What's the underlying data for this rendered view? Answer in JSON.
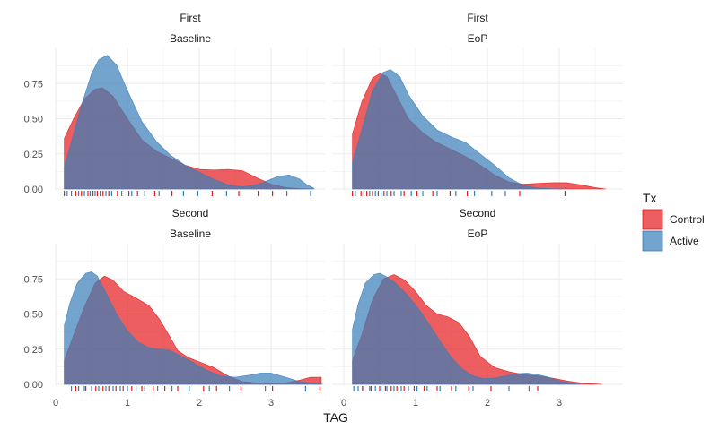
{
  "chart_data": {
    "type": "area",
    "subtype": "density-facet-grid",
    "xlabel": "TAG",
    "ylabel": "",
    "xlim": [
      0,
      3.75
    ],
    "ylim": [
      0,
      0.98
    ],
    "x_ticks": [
      0,
      1,
      2,
      3
    ],
    "y_ticks": [
      0,
      0.25,
      0.5,
      0.75
    ],
    "y_tick_labels": [
      "0.00",
      "0.25",
      "0.50",
      "0.75"
    ],
    "grid": true,
    "legend": {
      "title": "Tx",
      "position": "right",
      "entries": [
        {
          "label": "Control",
          "color": "#E41A1C"
        },
        {
          "label": "Active",
          "color": "#377EB8"
        }
      ]
    },
    "panels": [
      {
        "row_label": "First",
        "col_label": "Baseline",
        "series": [
          {
            "name": "Control",
            "color": "#E41A1C",
            "x": [
              0.12,
              0.25,
              0.4,
              0.55,
              0.65,
              0.8,
              1.0,
              1.2,
              1.4,
              1.6,
              1.8,
              2.0,
              2.2,
              2.4,
              2.6,
              2.8,
              3.0,
              3.2,
              3.4,
              3.58
            ],
            "y": [
              0.36,
              0.5,
              0.64,
              0.71,
              0.72,
              0.66,
              0.5,
              0.35,
              0.27,
              0.22,
              0.17,
              0.14,
              0.135,
              0.14,
              0.13,
              0.08,
              0.035,
              0.01,
              0.003,
              0.0
            ]
          },
          {
            "name": "Active",
            "color": "#377EB8",
            "x": [
              0.12,
              0.2,
              0.35,
              0.5,
              0.6,
              0.72,
              0.85,
              1.0,
              1.2,
              1.4,
              1.6,
              1.8,
              2.0,
              2.2,
              2.4,
              2.6,
              2.8,
              3.0,
              3.1,
              3.25,
              3.4,
              3.5,
              3.6
            ],
            "y": [
              0.16,
              0.3,
              0.58,
              0.82,
              0.92,
              0.95,
              0.88,
              0.7,
              0.48,
              0.34,
              0.24,
              0.17,
              0.12,
              0.07,
              0.03,
              0.015,
              0.03,
              0.07,
              0.09,
              0.1,
              0.07,
              0.03,
              0.005
            ]
          }
        ],
        "rug": {
          "control": [
            0.12,
            0.28,
            0.36,
            0.45,
            0.52,
            0.58,
            0.66,
            0.74,
            0.86,
            1.02,
            1.14,
            1.38,
            1.62,
            2.18,
            2.55,
            2.82,
            3.02
          ],
          "active": [
            0.16,
            0.22,
            0.32,
            0.4,
            0.48,
            0.55,
            0.62,
            0.7,
            0.78,
            0.92,
            1.06,
            1.24,
            1.44,
            1.78,
            1.98,
            2.38,
            3.22,
            3.55
          ]
        }
      },
      {
        "row_label": "First",
        "col_label": "EoP",
        "series": [
          {
            "name": "Control",
            "color": "#E41A1C",
            "x": [
              0.12,
              0.25,
              0.4,
              0.5,
              0.6,
              0.75,
              0.9,
              1.1,
              1.3,
              1.5,
              1.7,
              1.9,
              2.1,
              2.3,
              2.5,
              2.7,
              2.9,
              3.1,
              3.3,
              3.5,
              3.65
            ],
            "y": [
              0.39,
              0.62,
              0.79,
              0.82,
              0.8,
              0.65,
              0.5,
              0.4,
              0.33,
              0.28,
              0.23,
              0.17,
              0.1,
              0.05,
              0.035,
              0.04,
              0.045,
              0.045,
              0.03,
              0.01,
              0.0
            ]
          },
          {
            "name": "Active",
            "color": "#377EB8",
            "x": [
              0.12,
              0.25,
              0.4,
              0.55,
              0.65,
              0.78,
              0.9,
              1.1,
              1.3,
              1.5,
              1.7,
              1.9,
              2.1,
              2.3,
              2.5,
              2.7,
              2.9,
              3.1
            ],
            "y": [
              0.19,
              0.42,
              0.7,
              0.83,
              0.85,
              0.8,
              0.67,
              0.52,
              0.42,
              0.37,
              0.33,
              0.25,
              0.17,
              0.08,
              0.025,
              0.007,
              0.002,
              0.0
            ]
          }
        ],
        "rug": {
          "control": [
            0.12,
            0.24,
            0.32,
            0.4,
            0.48,
            0.56,
            0.66,
            0.84,
            1.02,
            1.24,
            1.48,
            1.72,
            2.45,
            3.08
          ],
          "active": [
            0.16,
            0.28,
            0.36,
            0.44,
            0.52,
            0.6,
            0.7,
            0.8,
            0.94,
            1.1,
            1.3,
            1.56,
            1.82,
            2.06,
            2.25
          ]
        }
      },
      {
        "row_label": "Second",
        "col_label": "Baseline",
        "series": [
          {
            "name": "Control",
            "color": "#E41A1C",
            "x": [
              0.12,
              0.25,
              0.4,
              0.55,
              0.68,
              0.8,
              0.95,
              1.1,
              1.3,
              1.45,
              1.6,
              1.7,
              1.85,
              2.0,
              2.2,
              2.4,
              2.6,
              2.8,
              3.0,
              3.2,
              3.4,
              3.55,
              3.7
            ],
            "y": [
              0.17,
              0.35,
              0.55,
              0.72,
              0.77,
              0.74,
              0.66,
              0.62,
              0.56,
              0.46,
              0.33,
              0.24,
              0.19,
              0.16,
              0.12,
              0.06,
              0.02,
              0.01,
              0.005,
              0.01,
              0.03,
              0.05,
              0.05
            ]
          },
          {
            "name": "Active",
            "color": "#377EB8",
            "x": [
              0.12,
              0.2,
              0.3,
              0.42,
              0.5,
              0.58,
              0.7,
              0.85,
              1.0,
              1.15,
              1.3,
              1.45,
              1.6,
              1.75,
              1.9,
              2.1,
              2.3,
              2.5,
              2.7,
              2.85,
              3.0,
              3.2,
              3.4,
              3.6,
              3.72
            ],
            "y": [
              0.42,
              0.58,
              0.72,
              0.79,
              0.8,
              0.77,
              0.65,
              0.5,
              0.38,
              0.3,
              0.26,
              0.25,
              0.24,
              0.2,
              0.16,
              0.1,
              0.06,
              0.05,
              0.065,
              0.08,
              0.08,
              0.05,
              0.02,
              0.005,
              0.0
            ]
          }
        ],
        "rug": {
          "control": [
            0.28,
            0.42,
            0.56,
            0.66,
            0.74,
            0.84,
            0.94,
            1.06,
            1.2,
            1.36,
            1.52,
            1.7,
            2.06,
            2.24,
            2.58,
            3.02,
            3.68
          ],
          "active": [
            0.22,
            0.32,
            0.4,
            0.5,
            0.6,
            0.7,
            0.8,
            0.9,
            1.0,
            1.12,
            1.24,
            1.42,
            1.62,
            1.86,
            2.14,
            2.42,
            2.92,
            3.48
          ]
        }
      },
      {
        "row_label": "Second",
        "col_label": "EoP",
        "series": [
          {
            "name": "Control",
            "color": "#E41A1C",
            "x": [
              0.12,
              0.25,
              0.4,
              0.55,
              0.7,
              0.85,
              1.0,
              1.15,
              1.3,
              1.45,
              1.6,
              1.75,
              1.9,
              2.1,
              2.3,
              2.5,
              2.7,
              2.9,
              3.1,
              3.3,
              3.5,
              3.6
            ],
            "y": [
              0.17,
              0.35,
              0.6,
              0.75,
              0.78,
              0.74,
              0.66,
              0.56,
              0.5,
              0.48,
              0.44,
              0.34,
              0.2,
              0.12,
              0.09,
              0.07,
              0.06,
              0.045,
              0.025,
              0.01,
              0.003,
              0.0
            ]
          },
          {
            "name": "Active",
            "color": "#377EB8",
            "x": [
              0.12,
              0.2,
              0.3,
              0.42,
              0.5,
              0.58,
              0.72,
              0.88,
              1.05,
              1.2,
              1.35,
              1.5,
              1.65,
              1.8,
              1.95,
              2.1,
              2.25,
              2.4,
              2.55,
              2.7,
              2.85,
              3.0,
              3.15,
              3.3
            ],
            "y": [
              0.39,
              0.57,
              0.72,
              0.78,
              0.79,
              0.77,
              0.72,
              0.64,
              0.53,
              0.42,
              0.3,
              0.19,
              0.11,
              0.06,
              0.04,
              0.045,
              0.06,
              0.075,
              0.08,
              0.07,
              0.05,
              0.025,
              0.01,
              0.0
            ]
          }
        ],
        "rug": {
          "control": [
            0.26,
            0.38,
            0.5,
            0.58,
            0.66,
            0.74,
            0.84,
            0.98,
            1.12,
            1.3,
            1.5,
            1.74,
            2.05,
            2.7
          ],
          "active": [
            0.14,
            0.2,
            0.28,
            0.36,
            0.44,
            0.52,
            0.6,
            0.7,
            0.8,
            0.9,
            1.02,
            1.16,
            1.34,
            1.56,
            1.8,
            2.3,
            2.58
          ]
        }
      }
    ]
  }
}
